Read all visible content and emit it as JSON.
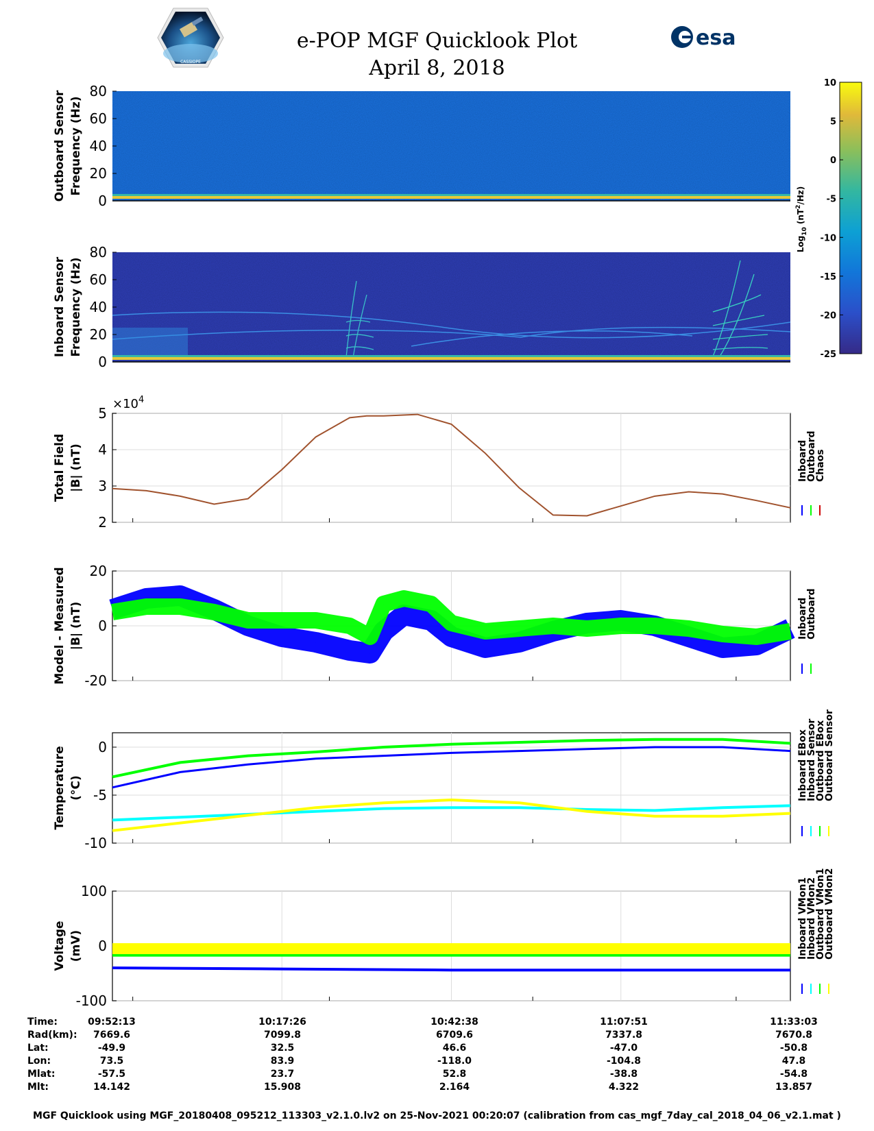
{
  "header": {
    "title": "e-POP MGF Quicklook Plot",
    "date": "April 8, 2018",
    "left_logo_text": "CASSIOPE",
    "right_logo_text": "esa"
  },
  "colors": {
    "inboard": "#0000ff",
    "outboard": "#00ff00",
    "chaos": "#cc0000",
    "inboard_sensor": "#00ffff",
    "outboard_sensor": "#ffff00",
    "model_line": "#a0522d"
  },
  "colorbar": {
    "label": "Log10 (nT^2/Hz)",
    "ticks": [
      10,
      5,
      0,
      -5,
      -10,
      -15,
      -20,
      -25
    ],
    "range": [
      -25,
      10
    ]
  },
  "chart_data": [
    {
      "type": "heatmap",
      "name": "outboard-spectrogram",
      "ylabel": "Outboard Sensor\nFrequency (Hz)",
      "ylabel_lines": [
        "Outboard Sensor",
        "Frequency (Hz)"
      ],
      "ylim": [
        0,
        80
      ],
      "yticks": [
        0,
        20,
        40,
        60,
        80
      ]
    },
    {
      "type": "heatmap",
      "name": "inboard-spectrogram",
      "ylabel_lines": [
        "Inboard Sensor",
        "Frequency (Hz)"
      ],
      "ylim": [
        0,
        80
      ],
      "yticks": [
        0,
        20,
        40,
        60,
        80
      ]
    },
    {
      "type": "line",
      "name": "total-field",
      "ylabel_lines": [
        "Total Field",
        "|B| (nT)"
      ],
      "ylim": [
        2,
        5
      ],
      "yticks": [
        2,
        3,
        4,
        5
      ],
      "yscale_label": "×10",
      "yscale_exp": "4",
      "x": [
        0,
        0.05,
        0.1,
        0.15,
        0.2,
        0.25,
        0.3,
        0.35,
        0.375,
        0.4,
        0.45,
        0.5,
        0.55,
        0.6,
        0.65,
        0.7,
        0.75,
        0.8,
        0.85,
        0.9,
        0.95,
        1.0
      ],
      "values": [
        2.93,
        2.87,
        2.72,
        2.5,
        2.65,
        3.45,
        4.35,
        4.88,
        4.93,
        4.93,
        4.97,
        4.7,
        3.9,
        2.95,
        2.2,
        2.18,
        2.45,
        2.72,
        2.84,
        2.78,
        2.6,
        2.4
      ],
      "legend": [
        "Inboard",
        "Outboard",
        "Chaos"
      ]
    },
    {
      "type": "line",
      "name": "model-minus-measured",
      "ylabel_lines": [
        "Model - Measured",
        "|B| (nT)"
      ],
      "ylim": [
        -20,
        20
      ],
      "yticks": [
        -20,
        0,
        20
      ],
      "x": [
        0,
        0.05,
        0.1,
        0.15,
        0.2,
        0.25,
        0.3,
        0.35,
        0.38,
        0.4,
        0.43,
        0.47,
        0.5,
        0.55,
        0.6,
        0.65,
        0.7,
        0.75,
        0.8,
        0.85,
        0.9,
        0.95,
        1.0
      ],
      "series": [
        {
          "name": "Inboard",
          "values": [
            6,
            10,
            11,
            6,
            0,
            -4,
            -6,
            -9,
            -10,
            -2,
            4,
            2,
            -4,
            -8,
            -6,
            -2,
            1,
            2,
            0,
            -4,
            -8,
            -7,
            -1
          ]
        },
        {
          "name": "Outboard",
          "values": [
            5,
            7,
            7,
            5,
            2,
            2,
            2,
            0,
            -4,
            8,
            10,
            8,
            1,
            -2,
            -1,
            0,
            -1,
            0,
            0,
            -1,
            -3,
            -4,
            -2
          ]
        }
      ],
      "legend": [
        "Inboard",
        "Outboard"
      ]
    },
    {
      "type": "line",
      "name": "temperature",
      "ylabel_lines": [
        "Temperature",
        "(°C)"
      ],
      "ylim": [
        -10,
        1.5
      ],
      "yticks": [
        -10,
        -5,
        0
      ],
      "x": [
        0,
        0.1,
        0.2,
        0.3,
        0.4,
        0.5,
        0.6,
        0.7,
        0.8,
        0.9,
        1.0
      ],
      "series": [
        {
          "name": "Inboard EBox",
          "values": [
            -4.2,
            -2.6,
            -1.8,
            -1.2,
            -0.9,
            -0.6,
            -0.4,
            -0.2,
            0.0,
            0.0,
            -0.4
          ]
        },
        {
          "name": "Inboard Sensor",
          "values": [
            -7.6,
            -7.3,
            -7.0,
            -6.7,
            -6.4,
            -6.3,
            -6.3,
            -6.5,
            -6.6,
            -6.3,
            -6.1
          ]
        },
        {
          "name": "Outboard EBox",
          "values": [
            -3.1,
            -1.6,
            -0.9,
            -0.5,
            0.0,
            0.3,
            0.5,
            0.7,
            0.8,
            0.8,
            0.4
          ]
        },
        {
          "name": "Outboard Sensor",
          "values": [
            -8.7,
            -7.9,
            -7.1,
            -6.3,
            -5.8,
            -5.5,
            -5.8,
            -6.7,
            -7.2,
            -7.2,
            -6.9
          ]
        }
      ],
      "legend": [
        "Inboard EBox",
        "Inboard Sensor",
        "Outboard EBox",
        "Outboard Sensor"
      ]
    },
    {
      "type": "line",
      "name": "voltage",
      "ylabel_lines": [
        "Voltage",
        "(mV)"
      ],
      "ylim": [
        -100,
        100
      ],
      "yticks": [
        -100,
        0,
        100
      ],
      "x": [
        0,
        0.25,
        0.5,
        0.75,
        1.0
      ],
      "series": [
        {
          "name": "Inboard VMon1",
          "values": [
            -40,
            -42,
            -44,
            -44,
            -44
          ]
        },
        {
          "name": "Inboard VMon2",
          "values": [
            -17,
            -17,
            -17,
            -17,
            -17
          ]
        },
        {
          "name": "Outboard VMon1",
          "values": [
            -10,
            -10,
            -10,
            -10,
            -10
          ]
        },
        {
          "name": "Outboard VMon2",
          "values": [
            -5,
            -5,
            -5,
            -5,
            -5
          ]
        }
      ],
      "legend": [
        "Inboard VMon1",
        "Inboard VMon2",
        "Outboard VMon1",
        "Outboard VMon2"
      ]
    }
  ],
  "ephemeris": {
    "row_labels": [
      "Time:",
      "Rad(km):",
      "Lat:",
      "Lon:",
      "Mlat:",
      "Mlt:"
    ],
    "columns": [
      [
        "09:52:13",
        "7669.6",
        "-49.9",
        "73.5",
        "-57.5",
        "14.142"
      ],
      [
        "10:17:26",
        "7099.8",
        "32.5",
        "83.9",
        "23.7",
        "15.908"
      ],
      [
        "10:42:38",
        "6709.6",
        "46.6",
        "-118.0",
        "52.8",
        "2.164"
      ],
      [
        "11:07:51",
        "7337.8",
        "-47.0",
        "-104.8",
        "-38.8",
        "4.322"
      ],
      [
        "11:33:03",
        "7670.8",
        "-50.8",
        "47.8",
        "-54.8",
        "13.857"
      ]
    ]
  },
  "footer": "MGF Quicklook using MGF_20180408_095212_113303_v2.1.0.lv2 on 25-Nov-2021 00:20:07 (calibration from cas_mgf_7day_cal_2018_04_06_v2.1.mat )"
}
